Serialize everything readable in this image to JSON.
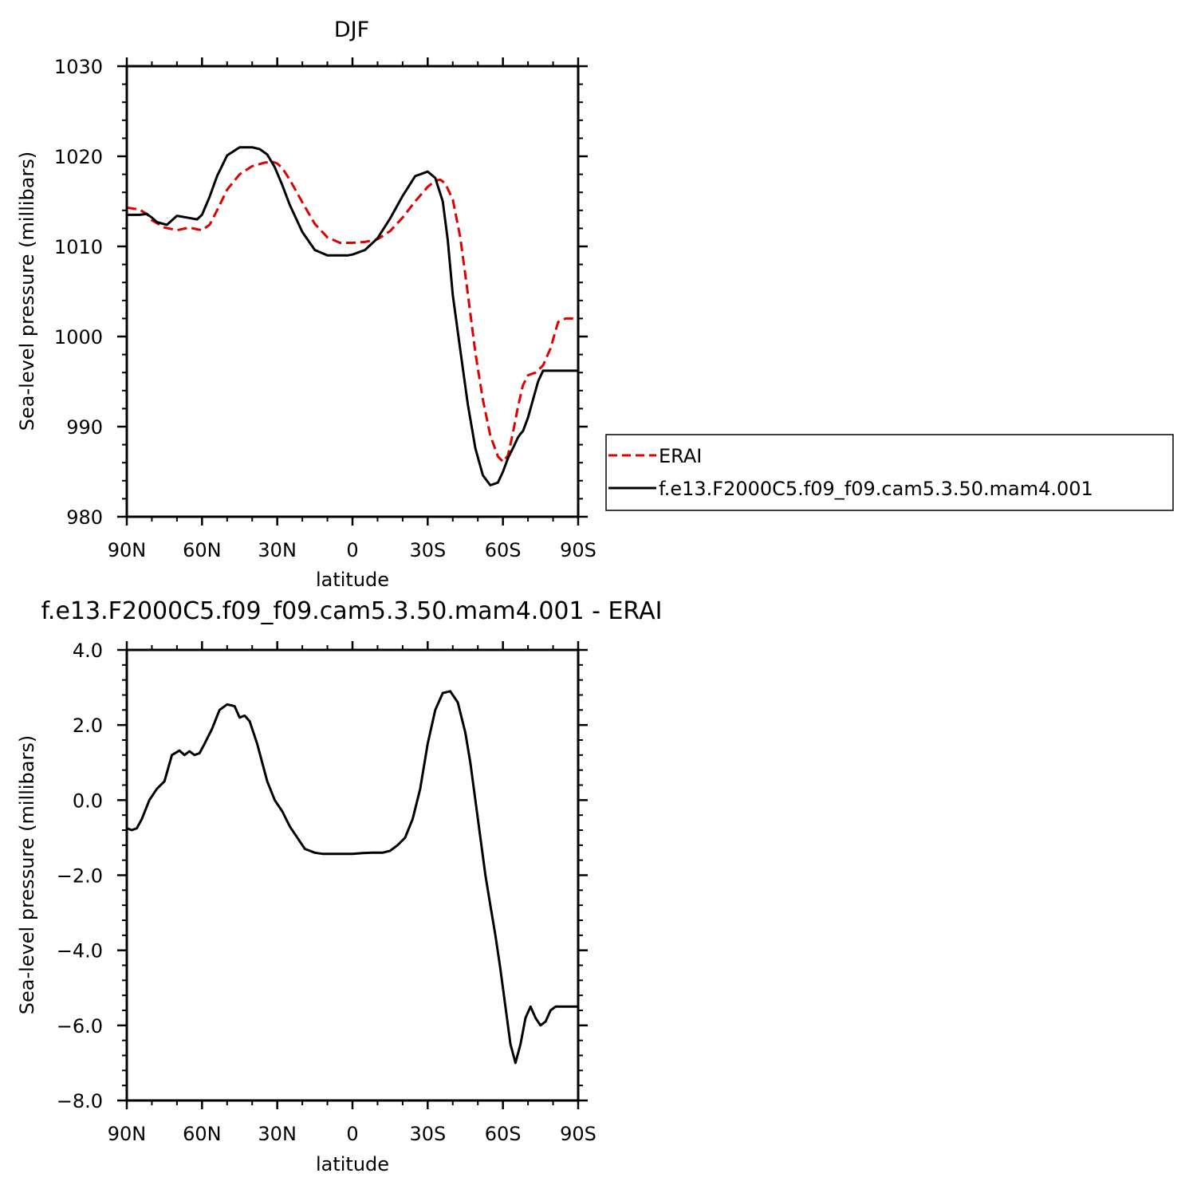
{
  "chart_data": [
    {
      "type": "line",
      "title": "DJF",
      "xlabel": "latitude",
      "ylabel": "Sea-level pressure (millibars)",
      "xlim": [
        -90,
        90
      ],
      "ylim": [
        980,
        1030
      ],
      "x_ticks": [
        -90,
        -60,
        -30,
        0,
        30,
        60,
        90
      ],
      "x_tick_labels": [
        "90N",
        "60N",
        "30N",
        "0",
        "30S",
        "60S",
        "90S"
      ],
      "y_ticks": [
        980,
        990,
        1000,
        1010,
        1020,
        1030
      ],
      "y_tick_labels": [
        "980",
        "990",
        "1000",
        "1010",
        "1020",
        "1030"
      ],
      "grid": false,
      "legend_position": "right",
      "series": [
        {
          "name": "ERAI",
          "color": "#e00000",
          "dash": "dashed",
          "x": [
            -90,
            -85,
            -82,
            -80,
            -75,
            -70,
            -65,
            -62,
            -60,
            -57,
            -54,
            -50,
            -45,
            -40,
            -35,
            -32,
            -30,
            -28,
            -25,
            -20,
            -15,
            -10,
            -5,
            0,
            5,
            10,
            15,
            20,
            25,
            30,
            33,
            35,
            37,
            40,
            43,
            46,
            49,
            52,
            55,
            58,
            60,
            62,
            64,
            66,
            68,
            70,
            73,
            76,
            79,
            82,
            85,
            88,
            90
          ],
          "y": [
            1014.3,
            1014.1,
            1013.6,
            1012.9,
            1012.1,
            1011.8,
            1012.1,
            1011.9,
            1011.8,
            1012.4,
            1014.0,
            1016.3,
            1018.0,
            1018.9,
            1019.3,
            1019.4,
            1019.2,
            1018.7,
            1017.4,
            1014.9,
            1012.5,
            1011.0,
            1010.4,
            1010.4,
            1010.5,
            1010.8,
            1011.7,
            1013.2,
            1015.0,
            1016.6,
            1017.3,
            1017.4,
            1017.0,
            1015.2,
            1011.0,
            1004.8,
            998.2,
            993.0,
            989.0,
            986.7,
            986.1,
            986.8,
            989.3,
            992.2,
            994.6,
            995.7,
            996.0,
            996.8,
            998.7,
            1001.6,
            1002.0,
            1002.0,
            1002.0
          ]
        },
        {
          "name": "f.e13.F2000C5.f09_f09.cam5.3.50.mam4.001",
          "color": "#000000",
          "dash": "solid",
          "x": [
            -90,
            -85,
            -82,
            -80,
            -78,
            -74,
            -70,
            -66,
            -62,
            -60,
            -57,
            -54,
            -50,
            -45,
            -40,
            -37,
            -34,
            -31,
            -28,
            -25,
            -20,
            -15,
            -10,
            -5,
            -2,
            0,
            5,
            10,
            15,
            20,
            25,
            30,
            33,
            36,
            38,
            40,
            43,
            46,
            49,
            52,
            55,
            58,
            60,
            62,
            64,
            66,
            67,
            68,
            70,
            72,
            74,
            76,
            78,
            80,
            82,
            84,
            86,
            88,
            90
          ],
          "y": [
            1013.5,
            1013.5,
            1013.6,
            1013.2,
            1012.7,
            1012.4,
            1013.4,
            1013.2,
            1013.0,
            1013.5,
            1015.5,
            1017.8,
            1020.1,
            1021.0,
            1021.0,
            1020.8,
            1020.2,
            1018.8,
            1016.8,
            1014.6,
            1011.6,
            1009.6,
            1009.0,
            1009.0,
            1009.0,
            1009.1,
            1009.6,
            1010.9,
            1013.1,
            1015.6,
            1017.8,
            1018.3,
            1017.6,
            1015.0,
            1010.7,
            1004.6,
            998.5,
            992.5,
            987.6,
            984.6,
            983.5,
            983.8,
            985.0,
            986.5,
            987.6,
            988.8,
            989.2,
            989.5,
            991.0,
            993.0,
            995.0,
            996.2,
            996.2,
            996.2,
            996.2,
            996.2,
            996.2,
            996.2,
            996.2
          ]
        }
      ]
    },
    {
      "type": "line",
      "title": "f.e13.F2000C5.f09_f09.cam5.3.50.mam4.001 - ERAI",
      "xlabel": "latitude",
      "ylabel": "Sea-level pressure (millibars)",
      "xlim": [
        -90,
        90
      ],
      "ylim": [
        -8,
        4
      ],
      "x_ticks": [
        -90,
        -60,
        -30,
        0,
        30,
        60,
        90
      ],
      "x_tick_labels": [
        "90N",
        "60N",
        "30N",
        "0",
        "30S",
        "60S",
        "90S"
      ],
      "y_ticks": [
        -8,
        -6,
        -4,
        -2,
        0,
        2,
        4
      ],
      "y_tick_labels": [
        "−8.0",
        "−6.0",
        "−4.0",
        "−2.0",
        "0.0",
        "2.0",
        "4.0"
      ],
      "grid": false,
      "series": [
        {
          "color": "#000000",
          "dash": "solid",
          "x": [
            -90,
            -88,
            -86,
            -84,
            -81,
            -78,
            -75,
            -72,
            -69,
            -67,
            -65,
            -63,
            -61,
            -59,
            -56,
            -53,
            -50,
            -47,
            -45,
            -43,
            -41,
            -40,
            -38,
            -36,
            -34,
            -31,
            -28,
            -25,
            -22,
            -19,
            -15,
            -12,
            -9,
            -6,
            -3,
            0,
            4,
            8,
            12,
            15,
            18,
            21,
            24,
            27,
            30,
            33,
            36,
            39,
            42,
            45,
            47,
            49,
            51,
            53,
            55,
            57,
            59,
            61,
            63,
            65,
            67,
            69,
            71,
            73,
            75,
            77,
            79,
            81,
            83,
            85,
            87,
            89,
            90
          ],
          "y": [
            -0.75,
            -0.8,
            -0.75,
            -0.5,
            0.0,
            0.3,
            0.5,
            1.2,
            1.32,
            1.2,
            1.3,
            1.2,
            1.25,
            1.5,
            1.9,
            2.4,
            2.55,
            2.5,
            2.2,
            2.25,
            2.1,
            1.9,
            1.5,
            1.0,
            0.5,
            0.0,
            -0.3,
            -0.7,
            -1.0,
            -1.3,
            -1.4,
            -1.43,
            -1.43,
            -1.43,
            -1.43,
            -1.43,
            -1.41,
            -1.4,
            -1.4,
            -1.35,
            -1.2,
            -1.0,
            -0.5,
            0.3,
            1.5,
            2.4,
            2.85,
            2.9,
            2.6,
            1.8,
            1.0,
            0.0,
            -1.0,
            -2.0,
            -2.8,
            -3.6,
            -4.5,
            -5.5,
            -6.5,
            -7.0,
            -6.5,
            -5.8,
            -5.5,
            -5.8,
            -6.0,
            -5.9,
            -5.6,
            -5.5,
            -5.5,
            -5.5,
            -5.5,
            -5.5,
            -5.5
          ]
        }
      ]
    }
  ]
}
